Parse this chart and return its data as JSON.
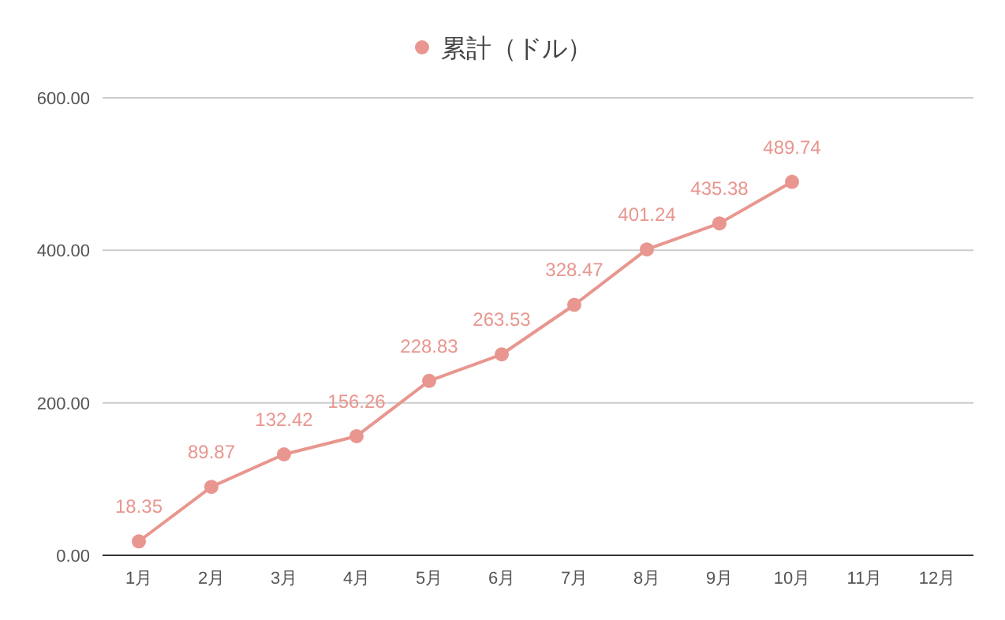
{
  "chart_data": {
    "type": "line",
    "categories": [
      "1月",
      "2月",
      "3月",
      "4月",
      "5月",
      "6月",
      "7月",
      "8月",
      "9月",
      "10月",
      "11月",
      "12月"
    ],
    "series": [
      {
        "name": "累計（ドル）",
        "color": "#e8968f",
        "values": [
          18.35,
          89.87,
          132.42,
          156.26,
          228.83,
          263.53,
          328.47,
          401.24,
          435.38,
          489.74,
          null,
          null
        ]
      }
    ],
    "ylim": [
      0,
      600
    ],
    "yticks": [
      {
        "value": 0,
        "label": "0.00"
      },
      {
        "value": 200,
        "label": "200.00"
      },
      {
        "value": 400,
        "label": "400.00"
      },
      {
        "value": 600,
        "label": "600.00"
      }
    ],
    "grid": "y",
    "legend": "top",
    "marker": "circle",
    "line_style": "solid",
    "data_labels": true
  }
}
